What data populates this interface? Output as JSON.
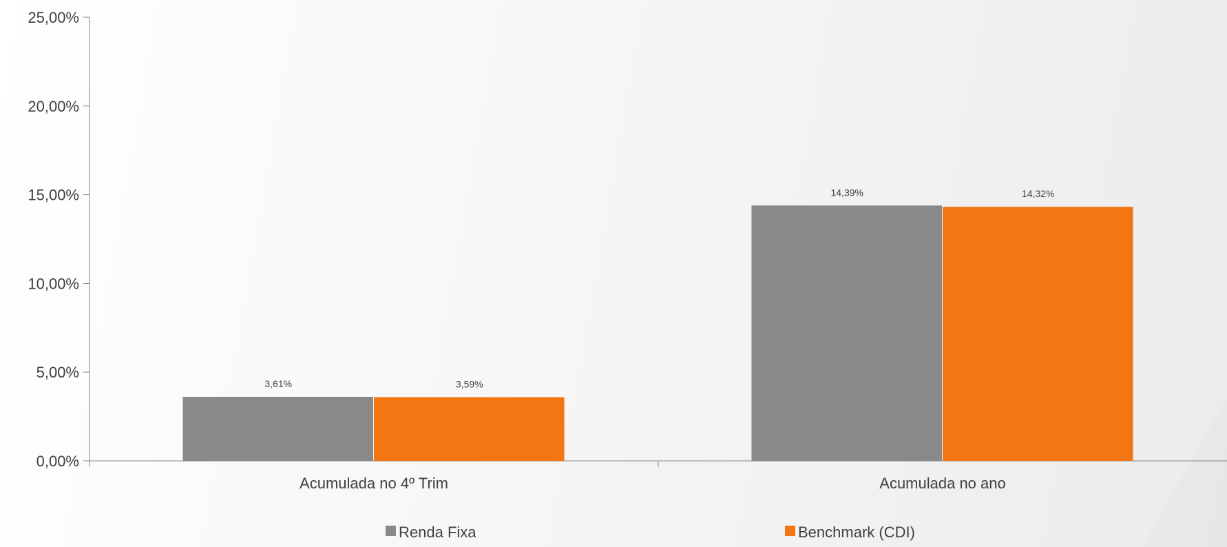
{
  "chart_data": {
    "type": "bar",
    "categories": [
      "Acumulada no 4º Trim",
      "Acumulada no ano"
    ],
    "series": [
      {
        "name": "Renda Fixa",
        "values": [
          3.61,
          14.39
        ],
        "labels": [
          "3,61%",
          "14,39%"
        ],
        "color": "#898989"
      },
      {
        "name": "Benchmark (CDI)",
        "values": [
          3.59,
          14.32
        ],
        "labels": [
          "3,59%",
          "14,32%"
        ],
        "color": "#f27612"
      }
    ],
    "ylim": [
      0,
      25
    ],
    "yticks": [
      0,
      5,
      10,
      15,
      20,
      25
    ],
    "ytick_labels": [
      "0,00%",
      "5,00%",
      "10,00%",
      "15,00%",
      "20,00%",
      "25,00%"
    ],
    "grid": false,
    "legend_position": "bottom",
    "axis_color": "#868686",
    "text_color": "#404040"
  }
}
